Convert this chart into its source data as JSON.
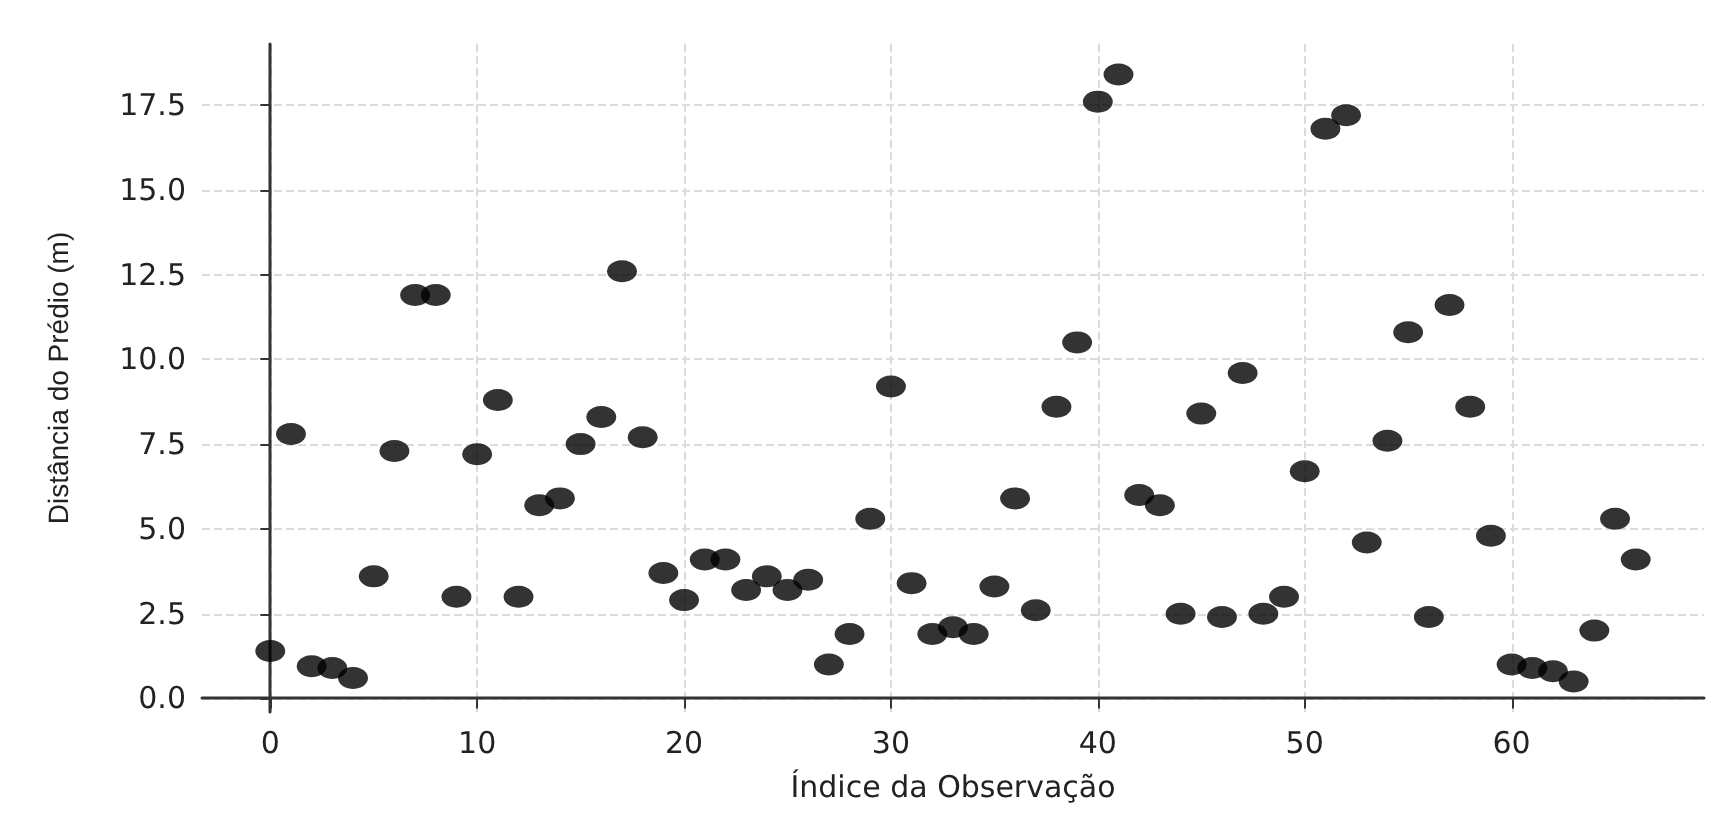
{
  "chart_data": {
    "type": "scatter",
    "xlabel": "Índice da Observação",
    "ylabel": "Distância do Prédio (m)",
    "x": [
      0,
      1,
      2,
      3,
      4,
      5,
      6,
      7,
      8,
      9,
      10,
      11,
      12,
      13,
      14,
      15,
      16,
      17,
      18,
      19,
      20,
      21,
      22,
      23,
      24,
      25,
      26,
      27,
      28,
      29,
      30,
      31,
      32,
      33,
      34,
      35,
      36,
      37,
      38,
      39,
      40,
      41,
      42,
      43,
      44,
      45,
      46,
      47,
      48,
      49,
      50,
      51,
      52,
      53,
      54,
      55,
      56,
      57,
      58,
      59,
      60,
      61,
      62,
      63,
      64,
      65,
      66
    ],
    "series": [
      {
        "color": "#000000",
        "values": [
          1.4,
          7.8,
          0.95,
          0.9,
          0.6,
          3.6,
          7.3,
          11.9,
          11.9,
          3.0,
          7.2,
          8.8,
          3.0,
          5.7,
          5.9,
          7.5,
          8.3,
          12.6,
          7.7,
          3.7,
          2.9,
          4.1,
          4.1,
          3.2,
          3.6,
          3.2,
          3.5,
          1.0,
          1.9,
          5.3,
          9.2,
          3.4,
          1.9,
          2.1,
          1.9,
          3.3,
          5.9,
          2.6,
          8.6,
          10.5,
          17.6,
          18.4,
          6.0,
          5.7,
          2.5,
          8.4,
          2.4,
          9.6,
          2.5,
          3.0,
          6.7,
          16.8,
          17.2,
          4.6,
          7.6,
          10.8,
          2.4,
          11.6,
          8.6,
          4.8,
          1.0,
          0.9,
          0.8,
          0.5,
          2.0,
          5.3,
          4.1
        ]
      }
    ],
    "xlim": [
      -3.3,
      69.3
    ],
    "xticks": [
      0,
      10,
      20,
      30,
      40,
      50,
      60
    ],
    "ylim": [
      -0.4,
      19.3
    ],
    "yticks": [
      {
        "value": 0,
        "label": "0.0"
      },
      2.5,
      {
        "value": 5,
        "label": "5.0"
      },
      7.5,
      {
        "value": 10,
        "label": "10.0"
      },
      12.5,
      {
        "value": 15,
        "label": "15.0"
      },
      17.5
    ],
    "grid": true,
    "marker": "circle"
  }
}
